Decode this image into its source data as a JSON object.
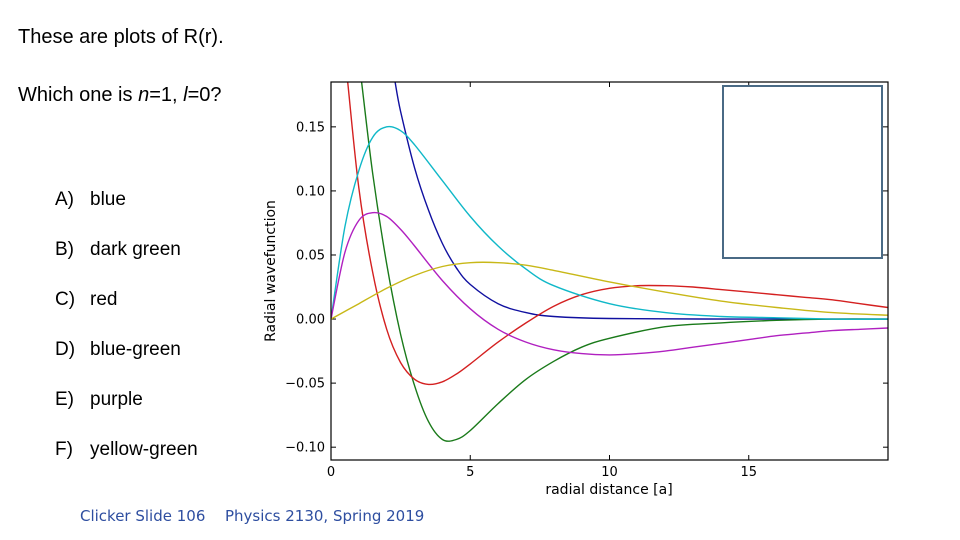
{
  "slide": {
    "question_line1": "These are plots of R(r).",
    "question_prefix": "Which one is ",
    "var_n": "n",
    "eq1": "=1, ",
    "var_l": "l",
    "eq2": "=0?",
    "options": [
      {
        "letter": "A)",
        "text": "blue"
      },
      {
        "letter": "B)",
        "text": "dark green"
      },
      {
        "letter": "C)",
        "text": "red"
      },
      {
        "letter": "D)",
        "text": "blue-green"
      },
      {
        "letter": "E)",
        "text": "purple"
      },
      {
        "letter": "F)",
        "text": "yellow-green"
      }
    ],
    "footer_left": "Clicker Slide 106",
    "footer_right": "Physics 2130, Spring 2019",
    "footer_color": "#2e4ea0"
  },
  "chart_data": {
    "type": "line",
    "title": "",
    "xlabel": "radial distance [a]",
    "ylabel": "Radial wavefunction",
    "xlim": [
      0,
      20
    ],
    "ylim": [
      -0.11,
      0.185
    ],
    "xticks": [
      0,
      5,
      10,
      15
    ],
    "xtick_labels": [
      "0",
      "5",
      "10",
      "15"
    ],
    "yticks": [
      -0.1,
      -0.05,
      0.0,
      0.05,
      0.1,
      0.15
    ],
    "ytick_labels": [
      "−0.10",
      "−0.05",
      "0.00",
      "0.05",
      "0.10",
      "0.15"
    ],
    "legend": {
      "placement": "top-right",
      "entries": []
    },
    "series": [
      {
        "color": "#1010a0",
        "x": [
          2.3,
          2.5,
          3.0,
          3.5,
          4.0,
          4.5,
          5.0,
          6.0,
          7.0,
          8.0,
          10.0,
          15.0,
          20.0
        ],
        "y": [
          0.185,
          0.162,
          0.118,
          0.085,
          0.059,
          0.04,
          0.027,
          0.012,
          0.005,
          0.002,
          0.0004,
          0.0,
          0.0
        ]
      },
      {
        "color": "#1a7a1a",
        "x": [
          1.1,
          1.5,
          2.0,
          2.5,
          3.0,
          3.5,
          4.0,
          4.5,
          5.0,
          6.0,
          7.0,
          8.0,
          9.0,
          10.0,
          12.0,
          14.0,
          16.0,
          18.0,
          20.0
        ],
        "y": [
          0.185,
          0.113,
          0.043,
          -0.012,
          -0.052,
          -0.08,
          -0.094,
          -0.094,
          -0.087,
          -0.066,
          -0.047,
          -0.033,
          -0.022,
          -0.015,
          -0.006,
          -0.003,
          -0.001,
          0.0,
          0.0
        ]
      },
      {
        "color": "#d42020",
        "x": [
          0.6,
          1.0,
          1.5,
          2.0,
          2.5,
          3.0,
          3.5,
          4.0,
          4.5,
          5.0,
          6.0,
          7.0,
          8.0,
          9.0,
          10.0,
          11.0,
          12.0,
          13.0,
          14.0,
          15.0,
          16.0,
          17.0,
          18.0,
          19.0,
          20.0
        ],
        "y": [
          0.185,
          0.102,
          0.036,
          -0.008,
          -0.034,
          -0.047,
          -0.051,
          -0.049,
          -0.043,
          -0.035,
          -0.018,
          -0.003,
          0.01,
          0.019,
          0.024,
          0.026,
          0.026,
          0.025,
          0.023,
          0.021,
          0.019,
          0.017,
          0.015,
          0.012,
          0.009
        ]
      },
      {
        "color": "#10b8c8",
        "x": [
          0.0,
          0.5,
          1.0,
          1.5,
          2.0,
          2.5,
          3.0,
          4.0,
          5.0,
          6.0,
          7.0,
          8.0,
          10.0,
          12.0,
          14.0,
          16.0,
          18.0,
          20.0
        ],
        "y": [
          0.0,
          0.072,
          0.116,
          0.142,
          0.15,
          0.147,
          0.136,
          0.108,
          0.08,
          0.057,
          0.039,
          0.026,
          0.012,
          0.005,
          0.002,
          0.001,
          0.0,
          0.0
        ]
      },
      {
        "color": "#b020c0",
        "x": [
          0.0,
          0.5,
          1.0,
          1.5,
          2.0,
          2.5,
          3.0,
          4.0,
          5.0,
          6.0,
          7.0,
          8.0,
          9.0,
          10.0,
          11.0,
          12.0,
          13.0,
          14.0,
          15.0,
          16.0,
          17.0,
          18.0,
          19.0,
          20.0
        ],
        "y": [
          0.0,
          0.052,
          0.077,
          0.083,
          0.08,
          0.07,
          0.057,
          0.03,
          0.008,
          -0.008,
          -0.018,
          -0.024,
          -0.027,
          -0.028,
          -0.027,
          -0.025,
          -0.022,
          -0.019,
          -0.016,
          -0.013,
          -0.011,
          -0.009,
          -0.008,
          -0.007
        ]
      },
      {
        "color": "#c8b818",
        "x": [
          0.0,
          1.0,
          2.0,
          3.0,
          4.0,
          5.0,
          6.0,
          7.0,
          8.0,
          10.0,
          12.0,
          14.0,
          16.0,
          18.0,
          20.0
        ],
        "y": [
          0.0,
          0.012,
          0.024,
          0.034,
          0.041,
          0.044,
          0.044,
          0.042,
          0.038,
          0.029,
          0.021,
          0.014,
          0.009,
          0.005,
          0.003
        ]
      }
    ]
  }
}
